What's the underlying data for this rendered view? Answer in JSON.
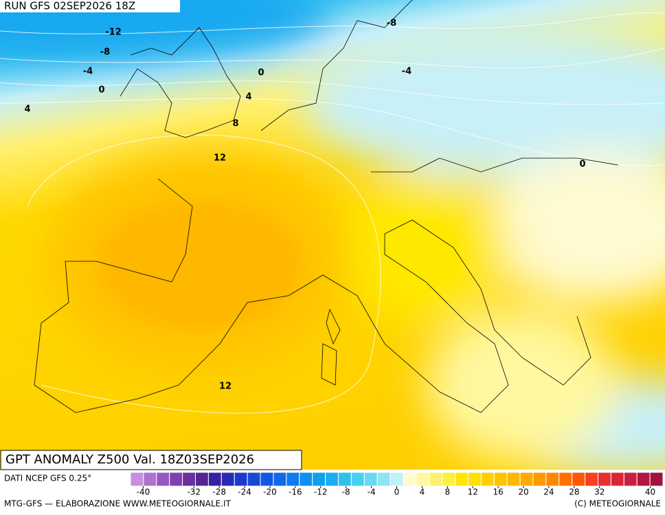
{
  "header": {
    "run": "RUN GFS 02SEP2026 18Z"
  },
  "map": {
    "contour_labels": [
      -12,
      -8,
      -8,
      -4,
      0,
      -4,
      0,
      4,
      4,
      8,
      12,
      0,
      12
    ]
  },
  "title": "GPT ANOMALY Z500 Val. 18Z03SEP2026",
  "source": "DATI NCEP GFS 0.25°",
  "colorbar": {
    "range": [
      -42,
      42
    ],
    "colors": [
      "#c88ee0",
      "#b070d0",
      "#9858c0",
      "#8040b0",
      "#6830a0",
      "#502890",
      "#3820a0",
      "#2828b8",
      "#2038c8",
      "#1848d8",
      "#1058e0",
      "#1068e8",
      "#1078f0",
      "#1090f0",
      "#10a0f0",
      "#18b0f0",
      "#30c0f0",
      "#48d0f0",
      "#68d8f0",
      "#90e4f4",
      "#c0f0f8",
      "#fffad0",
      "#fff8a0",
      "#fff070",
      "#fff040",
      "#ffe800",
      "#ffe000",
      "#ffd000",
      "#ffc400",
      "#ffb800",
      "#ffaa00",
      "#ff9a00",
      "#ff8800",
      "#ff7000",
      "#ff5800",
      "#f84020",
      "#e83030",
      "#d82838",
      "#c82040",
      "#b01840",
      "#a01440"
    ],
    "ticks": [
      -40,
      -32,
      -28,
      -24,
      -20,
      -16,
      -12,
      -8,
      -4,
      0,
      4,
      8,
      12,
      16,
      20,
      24,
      28,
      32,
      40
    ]
  },
  "footer": {
    "left": "MTG-GFS — ELABORAZIONE WWW.METEOGIORNALE.IT",
    "right": "(C) METEOGIORNALE"
  }
}
